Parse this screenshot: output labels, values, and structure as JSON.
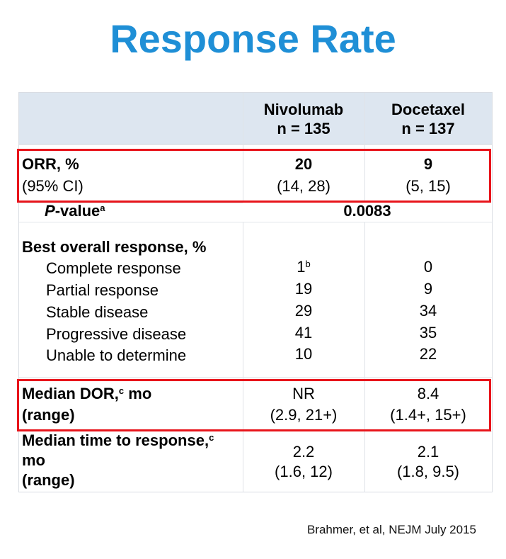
{
  "title": "Response Rate",
  "header": {
    "col1": {
      "line1": "Nivolumab",
      "line2": "n = 135"
    },
    "col2": {
      "line1": "Docetaxel",
      "line2": "n = 137"
    }
  },
  "orr": {
    "label": "ORR, %",
    "sublabel": "(95% CI)",
    "nivo": "20",
    "nivo_ci": "(14, 28)",
    "doce": "9",
    "doce_ci": "(5, 15)"
  },
  "pvalue": {
    "label_p": "P",
    "label_rest": "-value",
    "label_sup": "a",
    "value": "0.0083"
  },
  "bor": {
    "heading": "Best overall response,  %",
    "rows": [
      {
        "label": "Complete response",
        "nivo": "1",
        "nivo_sup": "b",
        "doce": "0"
      },
      {
        "label": "Partial response",
        "nivo": "19",
        "doce": "9"
      },
      {
        "label": "Stable disease",
        "nivo": "29",
        "doce": "34"
      },
      {
        "label": "Progressive disease",
        "nivo": "41",
        "doce": "35"
      },
      {
        "label": "Unable to determine",
        "nivo": "10",
        "doce": "22"
      }
    ]
  },
  "dor": {
    "label": "Median DOR,",
    "label_sup": "c",
    "label_unit": " mo",
    "label2": "(range)",
    "nivo": "NR",
    "nivo_range": "(2.9, 21+)",
    "doce": "8.4",
    "doce_range": "(1.4+, 15+)"
  },
  "ttr": {
    "label1": "Median time to response,",
    "label_sup": "c",
    "label2": "mo",
    "label3": "(range)",
    "nivo": "2.2",
    "nivo_range": "(1.6, 12)",
    "doce": "2.1",
    "doce_range": "(1.8, 9.5)"
  },
  "citation": "Brahmer, et al, NEJM July 2015",
  "colors": {
    "title": "#1f8fd6",
    "highlight": "#e8141b",
    "header_bg": "#dde6f0"
  }
}
